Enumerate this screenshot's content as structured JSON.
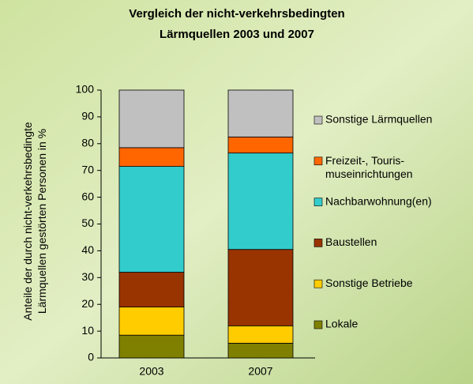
{
  "chart_data": {
    "type": "stacked_bar",
    "title": "Vergleich der nicht-verkehrsbedingten\nLärmquellen 2003 und 2007",
    "y_label": "Anteile der durch nicht-verkehrsbedingte\nLärmquellen gestörten Personen  in %",
    "categories": [
      "2003",
      "2007"
    ],
    "series": [
      {
        "name": "Lokale",
        "color": "#808000",
        "values": [
          8.5,
          5.5
        ]
      },
      {
        "name": "Sonstige Betriebe",
        "color": "#ffcc00",
        "values": [
          10.5,
          6.5
        ]
      },
      {
        "name": "Baustellen",
        "color": "#993300",
        "values": [
          13,
          28.5
        ]
      },
      {
        "name": "Nachbarwohnung(en)",
        "color": "#33cccc",
        "values": [
          39.5,
          36
        ]
      },
      {
        "name": "Freizeit-, Touris-\nmuseinrichtungen",
        "color": "#ff6600",
        "values": [
          7,
          6
        ]
      },
      {
        "name": "Sonstige Lärmquellen",
        "color": "#c0c0c0",
        "values": [
          21.5,
          17.5
        ]
      }
    ],
    "ylim": [
      0,
      100
    ],
    "yticks": [
      0,
      10,
      20,
      30,
      40,
      50,
      60,
      70,
      80,
      90,
      100
    ]
  }
}
